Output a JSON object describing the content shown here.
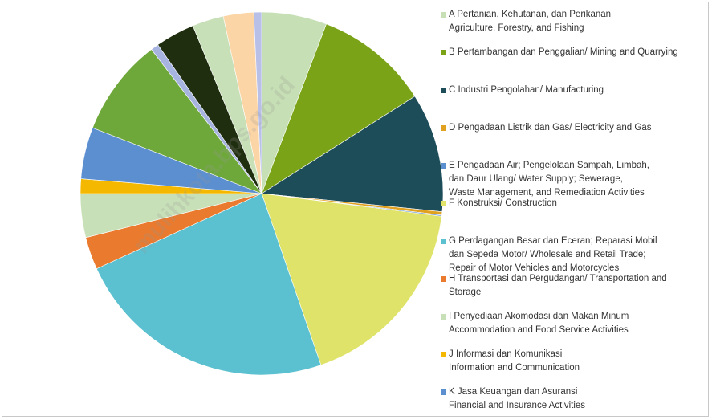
{
  "chart_data": {
    "type": "pie",
    "categories": [
      "A  Pertanian, Kehutanan, dan Perikanan\nAgriculture, Forestry, and Fishing",
      "B  Pertambangan dan Penggalian/ Mining and Quarrying",
      "C  Industri Pengolahan/ Manufacturing",
      "D  Pengadaan Listrik dan Gas/ Electricity and Gas",
      "E  Pengadaan Air; Pengelolaan Sampah, Limbah,\ndan Daur Ulang/  Water Supply; Sewerage,\nWaste Management, and Remediation Activities",
      "F  Konstruksi/ Construction",
      "G  Perdagangan Besar dan Eceran; Reparasi Mobil\ndan Sepeda Motor/ Wholesale and Retail Trade;\nRepair of Motor Vehicles and Motorcycles",
      "H  Transportasi dan Pergudangan/ Transportation and\nStorage",
      "I  Penyediaan Akomodasi dan Makan Minum\nAccommodation and Food Service Activities",
      "J  Informasi dan Komunikasi\nInformation and Communication",
      "K  Jasa Keuangan dan Asuransi\nFinancial and Insurance Activities",
      null,
      null,
      null,
      null,
      null,
      null
    ],
    "values": [
      5.8,
      10.2,
      10.6,
      0.3,
      0.1,
      17.7,
      23.5,
      2.9,
      3.9,
      1.3,
      4.6,
      8.7,
      0.7,
      3.5,
      2.8,
      2.7,
      0.7
    ],
    "colors": [
      "#c6dfb4",
      "#7aa317",
      "#1e4d5a",
      "#e0a020",
      "#5b8fd0",
      "#dfe36a",
      "#5bc0cf",
      "#ea7a2e",
      "#c8e0b8",
      "#f5b800",
      "#5b8fd0",
      "#6fa83a",
      "#a8b4e0",
      "#1f2e0e",
      "#c8e0b8",
      "#fbd5a5",
      "#b8c0e8"
    ],
    "watermark": "mulihkota.bps.go.id"
  }
}
